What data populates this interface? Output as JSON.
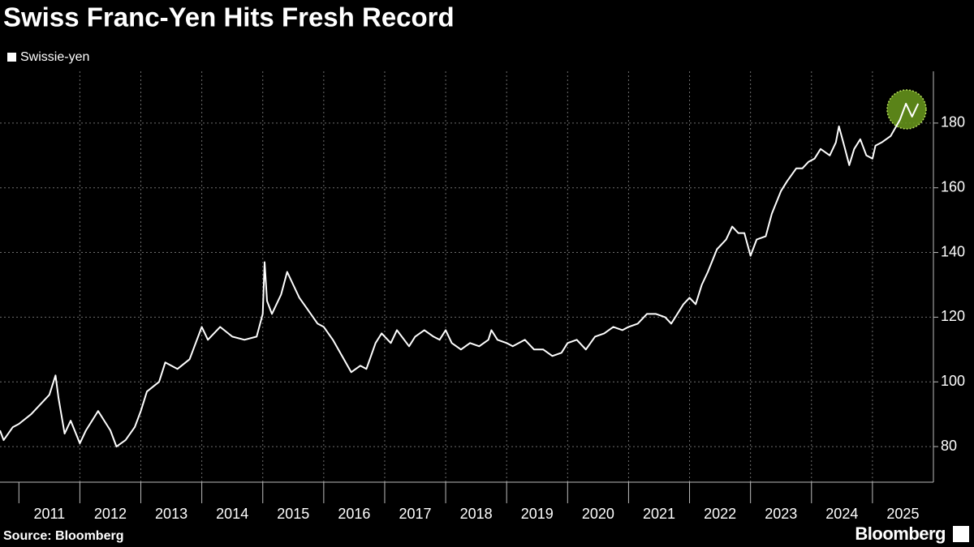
{
  "chart_data": {
    "type": "line",
    "title": "Swiss Franc-Yen Hits Fresh Record",
    "source": "Source: Bloomberg",
    "brand": "Bloomberg",
    "x": [
      2010.69,
      2010.75,
      2010.9,
      2011.0,
      2011.2,
      2011.4,
      2011.5,
      2011.6,
      2011.65,
      2011.75,
      2011.85,
      2012.0,
      2012.1,
      2012.3,
      2012.4,
      2012.5,
      2012.6,
      2012.75,
      2012.9,
      2013.0,
      2013.1,
      2013.3,
      2013.4,
      2013.6,
      2013.8,
      2013.9,
      2014.0,
      2014.1,
      2014.3,
      2014.5,
      2014.7,
      2014.9,
      2015.0,
      2015.03,
      2015.07,
      2015.15,
      2015.3,
      2015.4,
      2015.5,
      2015.6,
      2015.75,
      2015.9,
      2016.0,
      2016.15,
      2016.3,
      2016.45,
      2016.6,
      2016.7,
      2016.85,
      2016.95,
      2017.1,
      2017.2,
      2017.4,
      2017.5,
      2017.65,
      2017.8,
      2017.9,
      2018.0,
      2018.1,
      2018.25,
      2018.4,
      2018.55,
      2018.7,
      2018.75,
      2018.85,
      2019.0,
      2019.1,
      2019.3,
      2019.45,
      2019.6,
      2019.75,
      2019.9,
      2020.0,
      2020.15,
      2020.3,
      2020.45,
      2020.6,
      2020.75,
      2020.9,
      2021.0,
      2021.15,
      2021.3,
      2021.45,
      2021.6,
      2021.7,
      2021.8,
      2021.9,
      2022.0,
      2022.1,
      2022.2,
      2022.3,
      2022.45,
      2022.6,
      2022.7,
      2022.8,
      2022.9,
      2023.0,
      2023.1,
      2023.25,
      2023.35,
      2023.5,
      2023.6,
      2023.75,
      2023.85,
      2023.95,
      2024.05,
      2024.15,
      2024.3,
      2024.4,
      2024.45,
      2024.55,
      2024.62,
      2024.7,
      2024.8,
      2024.9,
      2025.0,
      2025.05,
      2025.15,
      2025.3,
      2025.45,
      2025.55,
      2025.65,
      2025.75
    ],
    "series": [
      {
        "name": "Swissie-yen",
        "color": "#ffffff",
        "values": [
          85,
          82,
          86,
          87,
          90,
          94,
          96,
          102,
          95,
          84,
          88,
          81,
          85,
          91,
          88,
          85,
          80,
          82,
          86,
          91,
          97,
          100,
          106,
          104,
          107,
          112,
          117,
          113,
          117,
          114,
          113,
          114,
          121,
          137,
          125,
          121,
          127,
          134,
          130,
          126,
          122,
          118,
          117,
          113,
          108,
          103,
          105,
          104,
          112,
          115,
          112,
          116,
          111,
          114,
          116,
          114,
          113,
          116,
          112,
          110,
          112,
          111,
          113,
          116,
          113,
          112,
          111,
          113,
          110,
          110,
          108,
          109,
          112,
          113,
          110,
          114,
          115,
          117,
          116,
          117,
          118,
          121,
          121,
          120,
          118,
          121,
          124,
          126,
          124,
          130,
          134,
          141,
          144,
          148,
          146,
          146,
          139,
          144,
          145,
          152,
          159,
          162,
          166,
          166,
          168,
          169,
          172,
          170,
          174,
          179,
          172,
          167,
          172,
          175,
          170,
          169,
          173,
          174,
          176,
          181,
          186,
          182,
          186
        ]
      }
    ],
    "xlim": [
      2010.69,
      2026.0
    ],
    "xticks": [
      2011,
      2012,
      2013,
      2014,
      2015,
      2016,
      2017,
      2018,
      2019,
      2020,
      2021,
      2022,
      2023,
      2024,
      2025
    ],
    "ylim": [
      69,
      196
    ],
    "yticks": [
      80,
      100,
      120,
      140,
      160,
      180
    ],
    "grid": true
  }
}
